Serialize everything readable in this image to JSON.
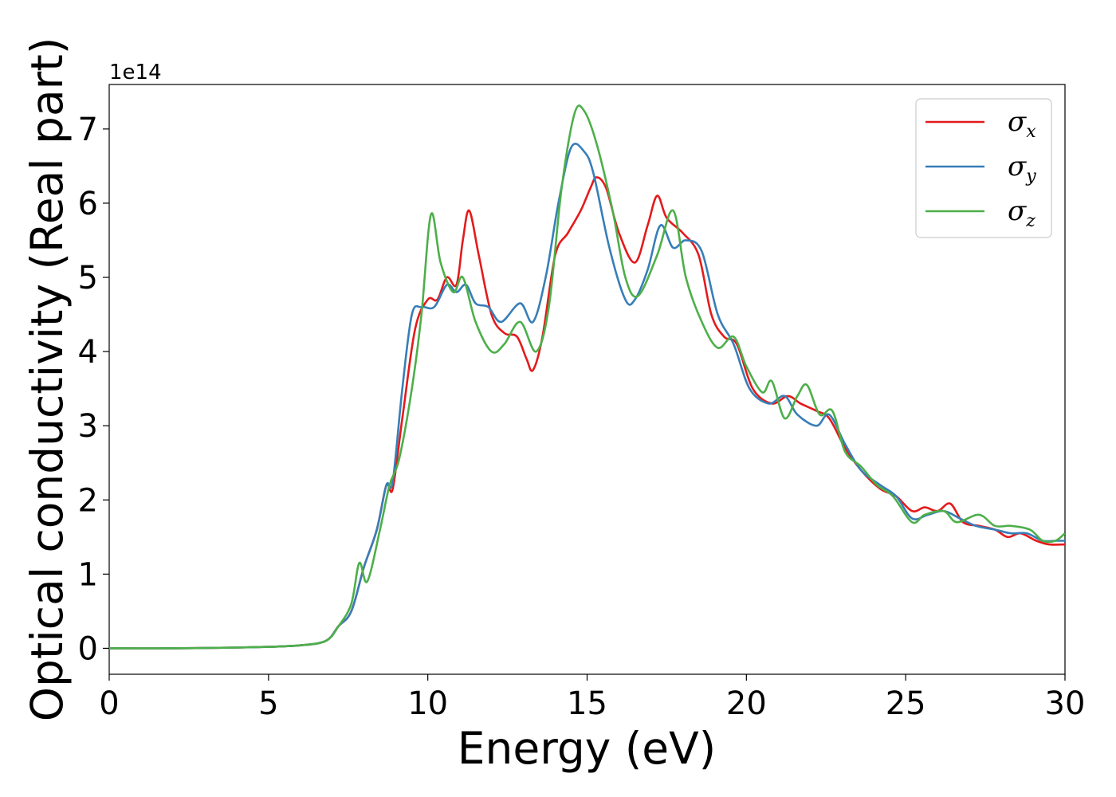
{
  "chart_data": {
    "type": "line",
    "xlabel": "Energy (eV)",
    "ylabel": "Optical conductivity (Real part)",
    "y_offset_text": "1e14",
    "xlim": [
      0,
      30
    ],
    "ylim": [
      -0.35,
      7.6
    ],
    "x_ticks": [
      0,
      5,
      10,
      15,
      20,
      25,
      30
    ],
    "y_ticks": [
      0,
      1,
      2,
      3,
      4,
      5,
      6,
      7
    ],
    "grid": false,
    "legend_position": "top-right",
    "series": [
      {
        "name": "σx",
        "symbol": "σ",
        "subscript": "x",
        "color": "#e41a1c",
        "points": [
          [
            0,
            0
          ],
          [
            2,
            0
          ],
          [
            4,
            0.01
          ],
          [
            5,
            0.02
          ],
          [
            6,
            0.04
          ],
          [
            6.8,
            0.1
          ],
          [
            7.2,
            0.3
          ],
          [
            7.6,
            0.5
          ],
          [
            8,
            1.1
          ],
          [
            8.4,
            1.6
          ],
          [
            8.7,
            2.2
          ],
          [
            8.9,
            2.15
          ],
          [
            9.2,
            3.1
          ],
          [
            9.6,
            4.3
          ],
          [
            10,
            4.7
          ],
          [
            10.3,
            4.7
          ],
          [
            10.6,
            5.0
          ],
          [
            10.9,
            4.9
          ],
          [
            11.1,
            5.5
          ],
          [
            11.3,
            5.9
          ],
          [
            11.6,
            5.3
          ],
          [
            12,
            4.5
          ],
          [
            12.4,
            4.25
          ],
          [
            12.8,
            4.2
          ],
          [
            13.1,
            3.9
          ],
          [
            13.3,
            3.75
          ],
          [
            13.6,
            4.2
          ],
          [
            14,
            5.3
          ],
          [
            14.4,
            5.6
          ],
          [
            14.8,
            5.9
          ],
          [
            15.1,
            6.2
          ],
          [
            15.3,
            6.35
          ],
          [
            15.6,
            6.2
          ],
          [
            16,
            5.6
          ],
          [
            16.5,
            5.2
          ],
          [
            16.9,
            5.7
          ],
          [
            17.2,
            6.1
          ],
          [
            17.5,
            5.8
          ],
          [
            18,
            5.6
          ],
          [
            18.5,
            5.3
          ],
          [
            18.9,
            4.5
          ],
          [
            19.3,
            4.2
          ],
          [
            19.7,
            4.1
          ],
          [
            20.2,
            3.5
          ],
          [
            20.8,
            3.3
          ],
          [
            21.3,
            3.4
          ],
          [
            21.7,
            3.3
          ],
          [
            22.2,
            3.2
          ],
          [
            22.6,
            3.1
          ],
          [
            23.1,
            2.7
          ],
          [
            23.6,
            2.4
          ],
          [
            24.2,
            2.15
          ],
          [
            24.7,
            2.05
          ],
          [
            25.2,
            1.85
          ],
          [
            25.6,
            1.9
          ],
          [
            26,
            1.85
          ],
          [
            26.4,
            1.95
          ],
          [
            26.8,
            1.7
          ],
          [
            27.3,
            1.65
          ],
          [
            27.8,
            1.6
          ],
          [
            28.2,
            1.5
          ],
          [
            28.6,
            1.55
          ],
          [
            29.1,
            1.45
          ],
          [
            29.5,
            1.4
          ],
          [
            30,
            1.4
          ]
        ]
      },
      {
        "name": "σy",
        "symbol": "σ",
        "subscript": "y",
        "color": "#377eb8",
        "points": [
          [
            0,
            0
          ],
          [
            2,
            0
          ],
          [
            4,
            0.01
          ],
          [
            5,
            0.02
          ],
          [
            6,
            0.04
          ],
          [
            6.8,
            0.1
          ],
          [
            7.2,
            0.3
          ],
          [
            7.6,
            0.5
          ],
          [
            8,
            1.1
          ],
          [
            8.4,
            1.6
          ],
          [
            8.7,
            2.2
          ],
          [
            8.9,
            2.25
          ],
          [
            9.2,
            3.5
          ],
          [
            9.5,
            4.5
          ],
          [
            9.8,
            4.6
          ],
          [
            10.2,
            4.6
          ],
          [
            10.6,
            4.9
          ],
          [
            10.9,
            4.8
          ],
          [
            11.2,
            4.9
          ],
          [
            11.5,
            4.65
          ],
          [
            11.9,
            4.6
          ],
          [
            12.3,
            4.4
          ],
          [
            12.9,
            4.65
          ],
          [
            13.3,
            4.4
          ],
          [
            13.7,
            5.0
          ],
          [
            14.1,
            6.0
          ],
          [
            14.5,
            6.75
          ],
          [
            14.9,
            6.7
          ],
          [
            15.2,
            6.4
          ],
          [
            15.7,
            5.4
          ],
          [
            16.2,
            4.7
          ],
          [
            16.5,
            4.7
          ],
          [
            16.9,
            5.1
          ],
          [
            17.3,
            5.7
          ],
          [
            17.7,
            5.4
          ],
          [
            18.1,
            5.5
          ],
          [
            18.6,
            5.35
          ],
          [
            19.1,
            4.5
          ],
          [
            19.6,
            4.1
          ],
          [
            20.1,
            3.5
          ],
          [
            20.7,
            3.3
          ],
          [
            21.2,
            3.4
          ],
          [
            21.6,
            3.15
          ],
          [
            22.2,
            3.0
          ],
          [
            22.6,
            3.15
          ],
          [
            23.1,
            2.75
          ],
          [
            23.6,
            2.4
          ],
          [
            24.2,
            2.2
          ],
          [
            24.7,
            2.05
          ],
          [
            25.2,
            1.75
          ],
          [
            25.7,
            1.8
          ],
          [
            26.2,
            1.85
          ],
          [
            26.7,
            1.75
          ],
          [
            27.2,
            1.65
          ],
          [
            27.8,
            1.6
          ],
          [
            28.3,
            1.55
          ],
          [
            28.8,
            1.55
          ],
          [
            29.3,
            1.45
          ],
          [
            29.7,
            1.45
          ],
          [
            30,
            1.45
          ]
        ]
      },
      {
        "name": "σz",
        "symbol": "σ",
        "subscript": "z",
        "color": "#4daf4a",
        "points": [
          [
            0,
            0
          ],
          [
            2,
            0
          ],
          [
            4,
            0.01
          ],
          [
            5,
            0.02
          ],
          [
            6,
            0.04
          ],
          [
            6.8,
            0.1
          ],
          [
            7.2,
            0.3
          ],
          [
            7.6,
            0.6
          ],
          [
            7.85,
            1.15
          ],
          [
            8.1,
            0.9
          ],
          [
            8.5,
            1.6
          ],
          [
            8.8,
            2.2
          ],
          [
            9.1,
            2.55
          ],
          [
            9.5,
            3.5
          ],
          [
            9.8,
            4.5
          ],
          [
            10.1,
            5.85
          ],
          [
            10.4,
            5.2
          ],
          [
            10.8,
            4.8
          ],
          [
            11.1,
            5.0
          ],
          [
            11.5,
            4.4
          ],
          [
            12,
            4.0
          ],
          [
            12.4,
            4.1
          ],
          [
            12.9,
            4.4
          ],
          [
            13.4,
            4.0
          ],
          [
            13.8,
            4.6
          ],
          [
            14.2,
            6.2
          ],
          [
            14.6,
            7.2
          ],
          [
            14.9,
            7.25
          ],
          [
            15.3,
            6.8
          ],
          [
            15.8,
            5.9
          ],
          [
            16.2,
            5.0
          ],
          [
            16.6,
            4.75
          ],
          [
            17.2,
            5.3
          ],
          [
            17.7,
            5.9
          ],
          [
            18.1,
            5.0
          ],
          [
            18.6,
            4.4
          ],
          [
            19.1,
            4.05
          ],
          [
            19.6,
            4.2
          ],
          [
            20,
            3.8
          ],
          [
            20.5,
            3.45
          ],
          [
            20.8,
            3.6
          ],
          [
            21.2,
            3.1
          ],
          [
            21.6,
            3.4
          ],
          [
            21.9,
            3.55
          ],
          [
            22.3,
            3.15
          ],
          [
            22.7,
            3.2
          ],
          [
            23.1,
            2.65
          ],
          [
            23.6,
            2.45
          ],
          [
            24.1,
            2.2
          ],
          [
            24.6,
            2.05
          ],
          [
            25.2,
            1.7
          ],
          [
            25.6,
            1.8
          ],
          [
            26.2,
            1.85
          ],
          [
            26.6,
            1.7
          ],
          [
            27.3,
            1.8
          ],
          [
            27.8,
            1.65
          ],
          [
            28.3,
            1.65
          ],
          [
            28.9,
            1.6
          ],
          [
            29.3,
            1.45
          ],
          [
            29.7,
            1.45
          ],
          [
            30,
            1.55
          ]
        ]
      }
    ]
  }
}
